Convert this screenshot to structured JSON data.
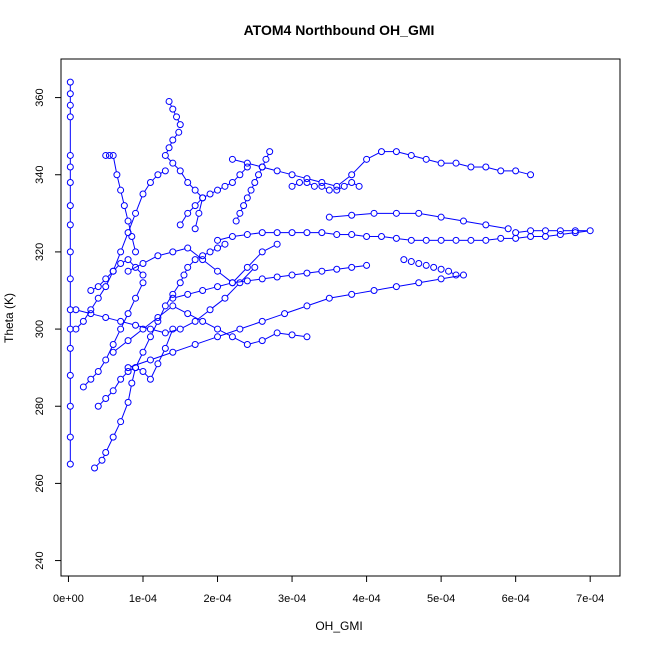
{
  "chart_data": {
    "type": "scatter",
    "title": "ATOM4 Northbound OH_GMI",
    "xlabel": "OH_GMI",
    "ylabel": "Theta (K)",
    "xlim": [
      -1e-05,
      0.00074
    ],
    "ylim": [
      236,
      370
    ],
    "x_ticks": [
      {
        "value": 0,
        "label": "0e+00"
      },
      {
        "value": 0.0001,
        "label": "1e-04"
      },
      {
        "value": 0.0002,
        "label": "2e-04"
      },
      {
        "value": 0.0003,
        "label": "3e-04"
      },
      {
        "value": 0.0004,
        "label": "4e-04"
      },
      {
        "value": 0.0005,
        "label": "5e-04"
      },
      {
        "value": 0.0006,
        "label": "6e-04"
      },
      {
        "value": 0.0007,
        "label": "7e-04"
      }
    ],
    "y_ticks": [
      {
        "value": 240,
        "label": "240"
      },
      {
        "value": 260,
        "label": "260"
      },
      {
        "value": 280,
        "label": "280"
      },
      {
        "value": 300,
        "label": "300"
      },
      {
        "value": 320,
        "label": "320"
      },
      {
        "value": 340,
        "label": "340"
      },
      {
        "value": 360,
        "label": "360"
      }
    ],
    "grid": false,
    "legend": "none",
    "marker": "open-circle",
    "connected": true,
    "color": "#0000ff",
    "series": [
      {
        "x": [
          2.5e-06,
          2.5e-06,
          2.5e-06,
          2.5e-06,
          2.5e-06,
          2.5e-06,
          2.5e-06,
          2.5e-06,
          2.5e-06,
          2.5e-06,
          2.5e-06,
          2.5e-06,
          2.5e-06,
          2.5e-06,
          2.5e-06,
          2.5e-06,
          2.5e-06,
          2.5e-06
        ],
        "y": [
          364,
          361,
          358,
          355,
          345,
          342,
          338,
          332,
          327,
          320,
          313,
          305,
          300,
          295,
          288,
          280,
          272,
          265
        ]
      },
      {
        "x": [
          3.5e-05,
          4.5e-05,
          5e-05,
          6e-05,
          7e-05,
          8e-05,
          8.5e-05,
          9e-05,
          0.0001,
          0.00011,
          0.00012,
          0.00013,
          0.00014,
          0.00015,
          0.000155,
          0.00016,
          0.00017,
          0.00018,
          0.00019,
          0.0002,
          0.00021
        ],
        "y": [
          264,
          266,
          268,
          272,
          276,
          281,
          286,
          290,
          294,
          298,
          302,
          306,
          309,
          312,
          314,
          316,
          318,
          319,
          320,
          321,
          322
        ]
      },
      {
        "x": [
          0.000135,
          0.00014,
          0.000145,
          0.00015,
          0.000148,
          0.00014,
          0.000135,
          0.00013,
          0.00014,
          0.00015,
          0.00016,
          0.00017,
          0.00018,
          0.000175,
          0.00017
        ],
        "y": [
          359,
          357,
          355,
          353,
          351,
          349,
          347,
          345,
          343,
          341,
          338,
          336,
          334,
          330,
          326
        ]
      },
      {
        "x": [
          0.00022,
          0.00024,
          0.00026,
          0.00028,
          0.0003,
          0.00032,
          0.00034,
          0.00036,
          0.00038,
          0.0004,
          0.00042,
          0.00044,
          0.00046,
          0.00048,
          0.0005,
          0.00052,
          0.00054,
          0.00056,
          0.00058,
          0.0006,
          0.00062
        ],
        "y": [
          344,
          343,
          342,
          341,
          340,
          339,
          338,
          337,
          340,
          344,
          346,
          346,
          345,
          344,
          343,
          343,
          342,
          342,
          341,
          341,
          340
        ]
      },
      {
        "x": [
          0.0006,
          0.00062,
          0.00064,
          0.00066,
          0.00068,
          0.0007,
          0.00068,
          0.00066,
          0.00064,
          0.00062,
          0.0006,
          0.00058,
          0.00056,
          0.00054,
          0.00052,
          0.0005,
          0.00048,
          0.00046,
          0.00044,
          0.00042,
          0.0004,
          0.00038,
          0.00036,
          0.00034,
          0.00032,
          0.0003,
          0.00028,
          0.00026,
          0.00024,
          0.00022,
          0.0002
        ],
        "y": [
          325,
          325.5,
          325.5,
          325.5,
          325.5,
          325.5,
          325,
          324.5,
          324,
          324,
          323.5,
          323.5,
          323,
          323,
          323,
          323,
          323,
          323,
          323.5,
          324,
          324,
          324.5,
          324.5,
          325,
          325,
          325,
          325,
          325,
          324.5,
          324,
          323
        ]
      },
      {
        "x": [
          0.00053,
          0.0005,
          0.00047,
          0.00044,
          0.00041,
          0.00038,
          0.00035,
          0.00032,
          0.00029,
          0.00026,
          0.00023,
          0.0002,
          0.00017,
          0.00014,
          0.00011,
          8e-05
        ],
        "y": [
          314,
          313,
          312,
          311,
          310,
          309,
          308,
          306,
          304,
          302,
          300,
          298,
          296,
          294,
          292,
          290
        ]
      },
      {
        "x": [
          0.00032,
          0.0003,
          0.00028,
          0.00026,
          0.00024,
          0.00022,
          0.0002,
          0.00018,
          0.00016,
          0.00014,
          0.00012,
          0.0001,
          8e-05,
          6e-05
        ],
        "y": [
          298,
          298.5,
          299,
          297,
          296,
          298,
          300,
          302,
          304,
          306,
          303,
          300,
          297,
          294
        ]
      },
      {
        "x": [
          1e-05,
          2e-05,
          3e-05,
          4e-05,
          5e-05,
          6e-05,
          7e-05,
          8e-05,
          9e-05,
          0.0001,
          0.00011,
          0.00012,
          0.00013
        ],
        "y": [
          300,
          302,
          305,
          308,
          311,
          315,
          320,
          325,
          330,
          335,
          338,
          340,
          341
        ]
      },
      {
        "x": [
          5e-05,
          5.5e-05,
          6e-05,
          6.5e-05,
          7e-05,
          7.5e-05,
          8e-05,
          8.5e-05,
          9e-05
        ],
        "y": [
          345,
          345,
          345,
          340,
          336,
          332,
          328,
          324,
          320
        ]
      },
      {
        "x": [
          1e-05,
          3e-05,
          5e-05,
          7e-05,
          9e-05,
          0.00011,
          0.00013,
          0.00015,
          0.00017,
          0.00019,
          0.00021,
          0.00023,
          0.00025
        ],
        "y": [
          305,
          304,
          303,
          302,
          301,
          300,
          299,
          300,
          302,
          305,
          308,
          312,
          316
        ]
      },
      {
        "x": [
          8e-05,
          0.0001,
          0.00012,
          0.00014,
          0.00016,
          0.00018,
          0.0002,
          0.00022,
          0.00024,
          0.00026,
          0.00028
        ],
        "y": [
          315,
          317,
          319,
          320,
          321,
          318,
          315,
          312,
          316,
          320,
          322
        ]
      },
      {
        "x": [
          0.00027,
          0.000265,
          0.00026,
          0.000255,
          0.00025,
          0.000245,
          0.00024,
          0.000235,
          0.00023,
          0.000225
        ],
        "y": [
          346,
          344,
          342,
          340,
          338,
          336,
          334,
          332,
          330,
          328
        ]
      },
      {
        "x": [
          0.00014,
          0.00016,
          0.00018,
          0.0002,
          0.00022,
          0.00024,
          0.00026,
          0.00028,
          0.0003,
          0.00032,
          0.00034,
          0.00036,
          0.00038,
          0.0004
        ],
        "y": [
          308,
          309,
          310,
          311,
          312,
          312.5,
          313,
          313.5,
          314,
          314.5,
          315,
          315.5,
          316,
          316.5
        ]
      },
      {
        "x": [
          0.00035,
          0.00038,
          0.00041,
          0.00044,
          0.00047,
          0.0005,
          0.00053,
          0.00056,
          0.00059
        ],
        "y": [
          329,
          329.5,
          330,
          330,
          330,
          329,
          328,
          327,
          326
        ]
      },
      {
        "x": [
          0.0003,
          0.00031,
          0.00032,
          0.00033,
          0.00034,
          0.00035,
          0.00036,
          0.00037,
          0.00038,
          0.00039
        ],
        "y": [
          337,
          338,
          338,
          337,
          337,
          336,
          336,
          337,
          338,
          337
        ]
      },
      {
        "x": [
          2e-05,
          3e-05,
          4e-05,
          5e-05,
          6e-05,
          7e-05,
          8e-05,
          9e-05,
          0.0001
        ],
        "y": [
          285,
          287,
          289,
          292,
          296,
          300,
          304,
          308,
          312
        ]
      },
      {
        "x": [
          4e-05,
          5e-05,
          6e-05,
          7e-05,
          8e-05,
          9e-05,
          0.0001,
          0.00011,
          0.00012,
          0.00013,
          0.00014
        ],
        "y": [
          280,
          282,
          284,
          287,
          289,
          290,
          289,
          287,
          291,
          295,
          300
        ]
      },
      {
        "x": [
          0.00015,
          0.00016,
          0.00017,
          0.00018,
          0.00019,
          0.0002,
          0.00021,
          0.00022,
          0.00023,
          0.00024
        ],
        "y": [
          327,
          330,
          332,
          334,
          335,
          336,
          337,
          338,
          340,
          342
        ]
      },
      {
        "x": [
          0.00045,
          0.00046,
          0.00047,
          0.00048,
          0.00049,
          0.0005,
          0.00051,
          0.00052
        ],
        "y": [
          318,
          317.5,
          317,
          316.5,
          316,
          315.5,
          315,
          314
        ]
      },
      {
        "x": [
          3e-05,
          4e-05,
          5e-05,
          6e-05,
          7e-05,
          8e-05,
          9e-05,
          0.0001
        ],
        "y": [
          310,
          311,
          313,
          315,
          317,
          318,
          316,
          314
        ]
      }
    ]
  }
}
